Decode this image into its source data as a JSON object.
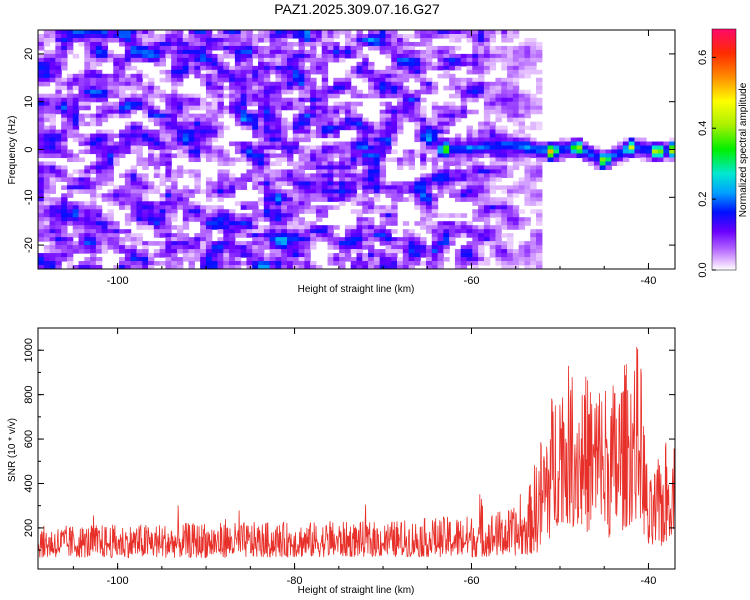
{
  "title": "PAZ1.2025.309.07.16.G27",
  "chart_data": [
    {
      "type": "heatmap",
      "name": "spectrogram",
      "xlabel": "Height of straight line (km)",
      "ylabel": "Frequency (Hz)",
      "xlim": [
        -109,
        -37
      ],
      "ylim": [
        -25,
        25
      ],
      "xticks": [
        -100,
        -60,
        -40
      ],
      "xtick_labels": [
        "-100",
        "-60",
        "-40"
      ],
      "yticks": [
        20,
        10,
        0,
        -10,
        -20
      ],
      "ytick_labels": [
        "20",
        "10",
        "0",
        "-10",
        "-20"
      ],
      "colorbar": {
        "label": "Normalized spectral amplitude",
        "range": [
          0,
          0.68
        ],
        "ticks": [
          0.0,
          0.2,
          0.4,
          0.6
        ],
        "tick_labels": [
          "0.0",
          "0.2",
          "0.4",
          "0.6"
        ]
      },
      "noise_region": {
        "x_range": [
          -109,
          -52
        ],
        "y_range": [
          -25,
          25
        ],
        "amplitude_range": [
          0.02,
          0.18
        ]
      },
      "signal_track": [
        {
          "x": -63,
          "y": 0.0,
          "amp": 0.45
        },
        {
          "x": -60,
          "y": 0.3,
          "amp": 0.25
        },
        {
          "x": -56,
          "y": 1.0,
          "amp": 0.2
        },
        {
          "x": -54,
          "y": 0.5,
          "amp": 0.3
        },
        {
          "x": -51,
          "y": -0.5,
          "amp": 0.55
        },
        {
          "x": -48,
          "y": 0.5,
          "amp": 0.5
        },
        {
          "x": -45,
          "y": -2.5,
          "amp": 0.5
        },
        {
          "x": -42,
          "y": 0.5,
          "amp": 0.45
        },
        {
          "x": -39,
          "y": -0.5,
          "amp": 0.55
        },
        {
          "x": -37,
          "y": 0.0,
          "amp": 0.6
        }
      ]
    },
    {
      "type": "line",
      "name": "snr",
      "xlabel": "Height of straight line (km)",
      "ylabel": "SNR (10 * v/v)",
      "xlim": [
        -109,
        -37
      ],
      "ylim": [
        15,
        1100
      ],
      "xticks": [
        -100,
        -80,
        -60,
        -40
      ],
      "xtick_labels": [
        "-100",
        "-80",
        "-60",
        "-40"
      ],
      "yticks": [
        200,
        400,
        600,
        800,
        1000
      ],
      "ytick_labels": [
        "200",
        "400",
        "600",
        "800",
        "1000"
      ],
      "color": "#e8302a",
      "envelope": [
        {
          "x": -109,
          "base": 120,
          "spread": 90
        },
        {
          "x": -90,
          "base": 125,
          "spread": 100
        },
        {
          "x": -70,
          "base": 130,
          "spread": 100
        },
        {
          "x": -60,
          "base": 140,
          "spread": 120
        },
        {
          "x": -54,
          "base": 160,
          "spread": 140
        },
        {
          "x": -52,
          "base": 300,
          "spread": 350
        },
        {
          "x": -50,
          "base": 500,
          "spread": 450
        },
        {
          "x": -47,
          "base": 450,
          "spread": 450
        },
        {
          "x": -44,
          "base": 420,
          "spread": 450
        },
        {
          "x": -41,
          "base": 550,
          "spread": 500
        },
        {
          "x": -40,
          "base": 200,
          "spread": 200
        },
        {
          "x": -38,
          "base": 300,
          "spread": 300
        },
        {
          "x": -37,
          "base": 350,
          "spread": 250
        }
      ]
    }
  ]
}
